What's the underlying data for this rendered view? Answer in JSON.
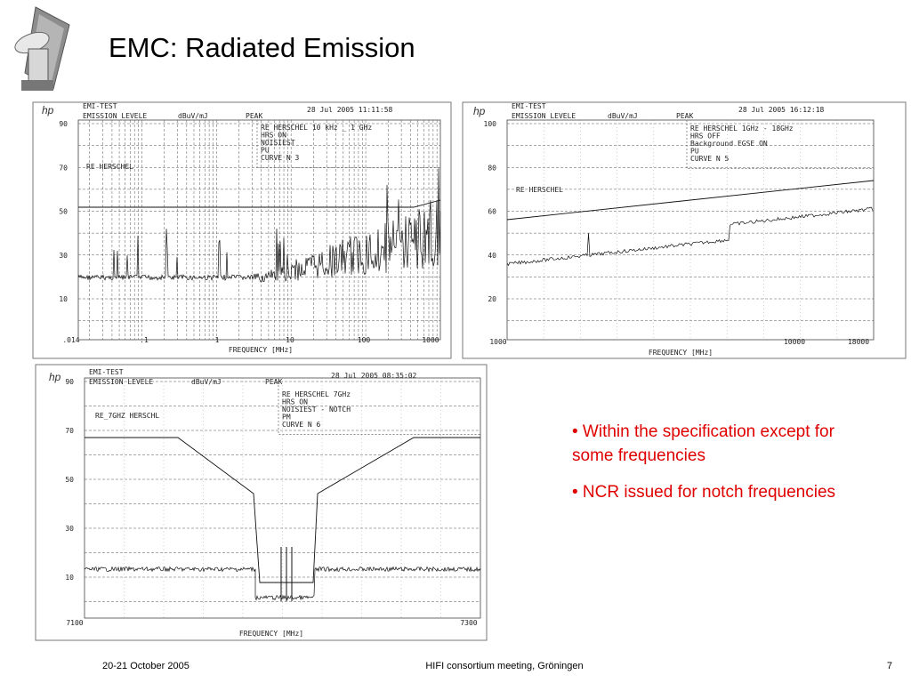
{
  "header": {
    "title": "EMC: Radiated Emission"
  },
  "plots": [
    {
      "brand": "hp",
      "test": "EMI-TEST",
      "level": "EMISSION LEVELE",
      "unit": "dBuV/mJ",
      "detector": "PEAK",
      "timestamp": "28 Jul 2005  11:11:58",
      "notes": [
        "RE HERSCHEL 10 kHz _ 1 GHz",
        "HRS ON",
        "NOISIEST",
        "PU",
        "CURVE N 3"
      ],
      "limit_label": "RE HERSCHEL",
      "yticks": [
        "90",
        "70",
        "50",
        "30",
        "10"
      ],
      "xticks": [
        ".014",
        ".1",
        "1",
        "10",
        "100",
        "1000"
      ],
      "xlabel": "FREQUENCY [MHz]"
    },
    {
      "brand": "hp",
      "test": "EMI-TEST",
      "level": "EMISSION LEVELE",
      "unit": "dBuV/mJ",
      "detector": "PEAK",
      "timestamp": "28 Jul 2005  16:12:18",
      "notes": [
        "RE HERSCHEL 1GHz - 18GHz",
        "HRS OFF",
        "Background EGSE ON",
        "PU",
        "CURVE N 5"
      ],
      "limit_label": "RE HERSCHEL",
      "yticks": [
        "100",
        "80",
        "60",
        "40",
        "20"
      ],
      "xticks": [
        "1000",
        "10000",
        "18000"
      ],
      "xlabel": "FREQUENCY [MHz]"
    },
    {
      "brand": "hp",
      "test": "EMI-TEST",
      "level": "EMISSION LEVELE",
      "unit": "dBuV/mJ",
      "detector": "PEAK",
      "timestamp": "28 Jul 2005  08:35:02",
      "notes": [
        "RE HERSCHEL 7GHz",
        "HRS ON",
        "NOISIEST - NOTCH",
        "PM",
        "CURVE N 6"
      ],
      "limit_label": "RE_7GHZ HERSCHL",
      "yticks": [
        "90",
        "70",
        "50",
        "30",
        "10"
      ],
      "xticks": [
        "7100",
        "7300"
      ],
      "xlabel": "FREQUENCY [MHz]"
    }
  ],
  "bullets": [
    "• Within the specification except for some frequencies",
    "• NCR issued for notch frequencies"
  ],
  "footer": {
    "date": "20-21 October 2005",
    "event": "HIFI consortium meeting, Gröningen",
    "page": "7"
  }
}
